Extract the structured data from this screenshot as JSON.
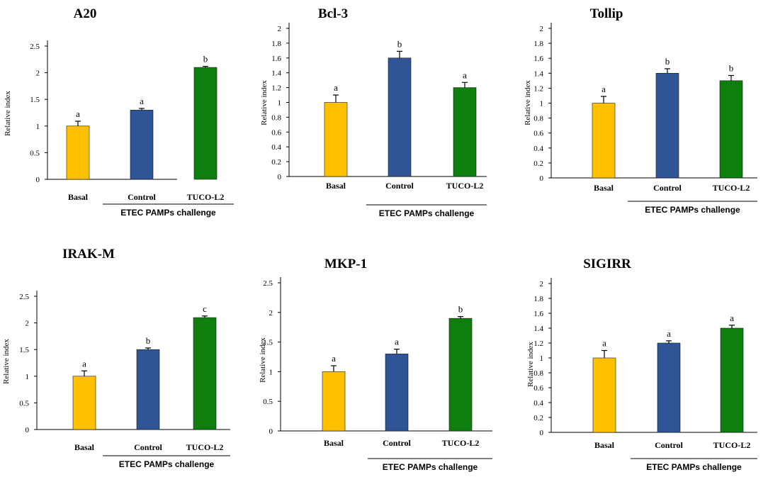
{
  "figure": {
    "bar_colors": {
      "Basal": "#FFC000",
      "Control": "#2F5597",
      "TUCO-L2": "#0E7F0E"
    },
    "ylabel": "Relative index",
    "group_label": "ETEC PAMPs challenge"
  },
  "chart_data": [
    {
      "type": "bar",
      "title": "A20",
      "categories": [
        "Basal",
        "Control",
        "TUCO-L2"
      ],
      "values": [
        1.0,
        1.3,
        2.1
      ],
      "errors": [
        0.09,
        0.03,
        0.02
      ],
      "letters": [
        "a",
        "a",
        "b"
      ],
      "ylim": [
        0,
        2.5
      ],
      "ticks": [
        "0",
        "0.5",
        "1",
        "1.5",
        "2",
        "2.5"
      ],
      "ylabel": "Relative index",
      "group_label": "ETEC PAMPs challenge"
    },
    {
      "type": "bar",
      "title": "Bcl-3",
      "categories": [
        "Basal",
        "Control",
        "TUCO-L2"
      ],
      "values": [
        1.0,
        1.6,
        1.2
      ],
      "errors": [
        0.1,
        0.09,
        0.07
      ],
      "letters": [
        "a",
        "b",
        "a"
      ],
      "ylim": [
        0,
        2
      ],
      "ticks": [
        "0",
        "0.2",
        "0.4",
        "0.6",
        "0.8",
        "1",
        "1.2",
        "1.4",
        "1.6",
        "1.8",
        "2"
      ],
      "ylabel": "Relative index",
      "group_label": "ETEC PAMPs challenge"
    },
    {
      "type": "bar",
      "title": "Tollip",
      "categories": [
        "Basal",
        "Control",
        "TUCO-L2"
      ],
      "values": [
        1.0,
        1.4,
        1.3
      ],
      "errors": [
        0.09,
        0.06,
        0.07
      ],
      "letters": [
        "a",
        "b",
        "b"
      ],
      "ylim": [
        0,
        2
      ],
      "ticks": [
        "0",
        "0.2",
        "0.4",
        "0.6",
        "0.8",
        "1",
        "1.2",
        "1.4",
        "1.6",
        "1.8",
        "2"
      ],
      "ylabel": "Relative index",
      "group_label": "ETEC PAMPs challenge"
    },
    {
      "type": "bar",
      "title": "IRAK-M",
      "categories": [
        "Basal",
        "Control",
        "TUCO-L2"
      ],
      "values": [
        1.0,
        1.5,
        2.1
      ],
      "errors": [
        0.1,
        0.03,
        0.03
      ],
      "letters": [
        "a",
        "b",
        "c"
      ],
      "ylim": [
        0,
        2.5
      ],
      "ticks": [
        "0",
        "0.5",
        "1",
        "1.5",
        "2",
        "2.5"
      ],
      "ylabel": "Relative index",
      "group_label": "ETEC PAMPs challenge"
    },
    {
      "type": "bar",
      "title": "MKP-1",
      "categories": [
        "Basal",
        "Control",
        "TUCO-L2"
      ],
      "values": [
        1.0,
        1.3,
        1.9
      ],
      "errors": [
        0.1,
        0.08,
        0.03
      ],
      "letters": [
        "a",
        "a",
        "b"
      ],
      "ylim": [
        0,
        2.5
      ],
      "ticks": [
        "0",
        "0.5",
        "1",
        "1.5",
        "2",
        "2.5"
      ],
      "ylabel": "Relative index",
      "group_label": "ETEC PAMPs challenge"
    },
    {
      "type": "bar",
      "title": "SIGIRR",
      "categories": [
        "Basal",
        "Control",
        "TUCO-L2"
      ],
      "values": [
        1.0,
        1.2,
        1.4
      ],
      "errors": [
        0.1,
        0.03,
        0.04
      ],
      "letters": [
        "a",
        "a",
        "a"
      ],
      "ylim": [
        0,
        2
      ],
      "ticks": [
        "0",
        "0.2",
        "0.4",
        "0.6",
        "0.8",
        "1",
        "1.2",
        "1.4",
        "1.6",
        "1.8",
        "2"
      ],
      "ylabel": "Relative index",
      "group_label": "ETEC PAMPs challenge"
    }
  ]
}
